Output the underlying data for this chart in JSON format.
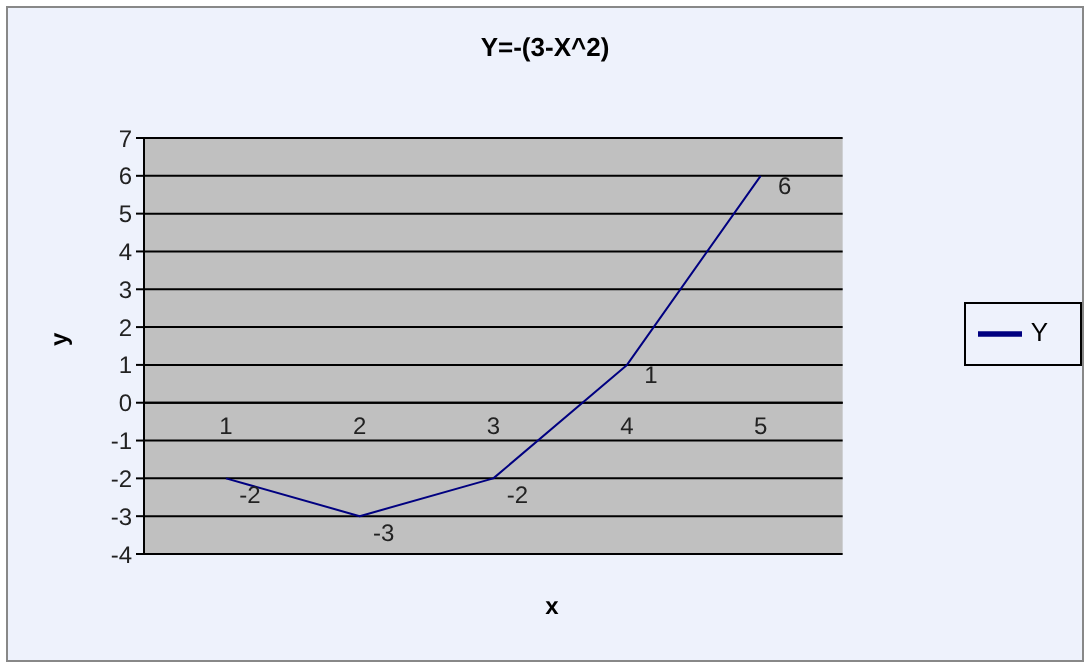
{
  "chart_data": {
    "type": "line",
    "title": "Y=-(3-X^2)",
    "xlabel": "x",
    "ylabel": "y",
    "categories": [
      "1",
      "2",
      "3",
      "4",
      "5"
    ],
    "series": [
      {
        "name": "Y",
        "color": "#000080",
        "values": [
          -2,
          -3,
          -2,
          1,
          6
        ]
      }
    ],
    "ylim": [
      -4,
      7
    ],
    "yticks": [
      -4,
      -3,
      -2,
      -1,
      0,
      1,
      2,
      3,
      4,
      5,
      6,
      7
    ],
    "grid": "y",
    "legend": "right",
    "data_labels": true,
    "marker": "none"
  }
}
